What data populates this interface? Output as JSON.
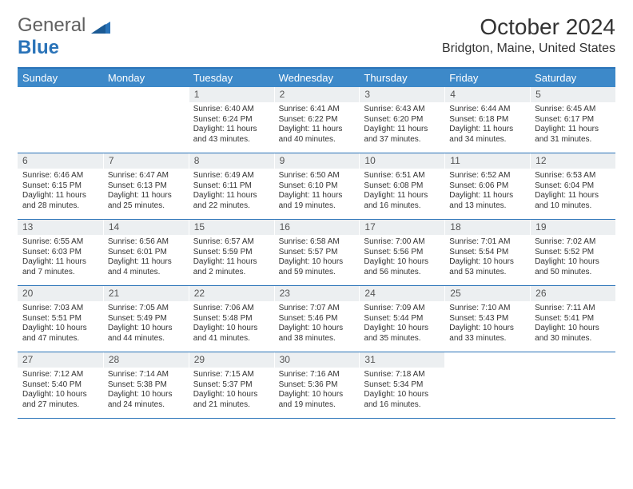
{
  "logo": {
    "word1": "General",
    "word2": "Blue"
  },
  "title": "October 2024",
  "location": "Bridgton, Maine, United States",
  "colors": {
    "header_bg": "#3d89c9",
    "header_text": "#ffffff",
    "border": "#2a73b8",
    "daynum_bg": "#eceff1",
    "daynum_text": "#555555",
    "body_text": "#333333",
    "logo_gray": "#606060",
    "logo_blue": "#2a73b8",
    "page_bg": "#ffffff"
  },
  "typography": {
    "title_fontsize": 28,
    "location_fontsize": 16,
    "header_fontsize": 13,
    "daynum_fontsize": 12,
    "cell_fontsize": 10,
    "logo_fontsize": 24
  },
  "days": [
    "Sunday",
    "Monday",
    "Tuesday",
    "Wednesday",
    "Thursday",
    "Friday",
    "Saturday"
  ],
  "weeks": [
    [
      {
        "n": "",
        "sunrise": "",
        "sunset": "",
        "daylight": ""
      },
      {
        "n": "",
        "sunrise": "",
        "sunset": "",
        "daylight": ""
      },
      {
        "n": "1",
        "sunrise": "Sunrise: 6:40 AM",
        "sunset": "Sunset: 6:24 PM",
        "daylight": "Daylight: 11 hours and 43 minutes."
      },
      {
        "n": "2",
        "sunrise": "Sunrise: 6:41 AM",
        "sunset": "Sunset: 6:22 PM",
        "daylight": "Daylight: 11 hours and 40 minutes."
      },
      {
        "n": "3",
        "sunrise": "Sunrise: 6:43 AM",
        "sunset": "Sunset: 6:20 PM",
        "daylight": "Daylight: 11 hours and 37 minutes."
      },
      {
        "n": "4",
        "sunrise": "Sunrise: 6:44 AM",
        "sunset": "Sunset: 6:18 PM",
        "daylight": "Daylight: 11 hours and 34 minutes."
      },
      {
        "n": "5",
        "sunrise": "Sunrise: 6:45 AM",
        "sunset": "Sunset: 6:17 PM",
        "daylight": "Daylight: 11 hours and 31 minutes."
      }
    ],
    [
      {
        "n": "6",
        "sunrise": "Sunrise: 6:46 AM",
        "sunset": "Sunset: 6:15 PM",
        "daylight": "Daylight: 11 hours and 28 minutes."
      },
      {
        "n": "7",
        "sunrise": "Sunrise: 6:47 AM",
        "sunset": "Sunset: 6:13 PM",
        "daylight": "Daylight: 11 hours and 25 minutes."
      },
      {
        "n": "8",
        "sunrise": "Sunrise: 6:49 AM",
        "sunset": "Sunset: 6:11 PM",
        "daylight": "Daylight: 11 hours and 22 minutes."
      },
      {
        "n": "9",
        "sunrise": "Sunrise: 6:50 AM",
        "sunset": "Sunset: 6:10 PM",
        "daylight": "Daylight: 11 hours and 19 minutes."
      },
      {
        "n": "10",
        "sunrise": "Sunrise: 6:51 AM",
        "sunset": "Sunset: 6:08 PM",
        "daylight": "Daylight: 11 hours and 16 minutes."
      },
      {
        "n": "11",
        "sunrise": "Sunrise: 6:52 AM",
        "sunset": "Sunset: 6:06 PM",
        "daylight": "Daylight: 11 hours and 13 minutes."
      },
      {
        "n": "12",
        "sunrise": "Sunrise: 6:53 AM",
        "sunset": "Sunset: 6:04 PM",
        "daylight": "Daylight: 11 hours and 10 minutes."
      }
    ],
    [
      {
        "n": "13",
        "sunrise": "Sunrise: 6:55 AM",
        "sunset": "Sunset: 6:03 PM",
        "daylight": "Daylight: 11 hours and 7 minutes."
      },
      {
        "n": "14",
        "sunrise": "Sunrise: 6:56 AM",
        "sunset": "Sunset: 6:01 PM",
        "daylight": "Daylight: 11 hours and 4 minutes."
      },
      {
        "n": "15",
        "sunrise": "Sunrise: 6:57 AM",
        "sunset": "Sunset: 5:59 PM",
        "daylight": "Daylight: 11 hours and 2 minutes."
      },
      {
        "n": "16",
        "sunrise": "Sunrise: 6:58 AM",
        "sunset": "Sunset: 5:57 PM",
        "daylight": "Daylight: 10 hours and 59 minutes."
      },
      {
        "n": "17",
        "sunrise": "Sunrise: 7:00 AM",
        "sunset": "Sunset: 5:56 PM",
        "daylight": "Daylight: 10 hours and 56 minutes."
      },
      {
        "n": "18",
        "sunrise": "Sunrise: 7:01 AM",
        "sunset": "Sunset: 5:54 PM",
        "daylight": "Daylight: 10 hours and 53 minutes."
      },
      {
        "n": "19",
        "sunrise": "Sunrise: 7:02 AM",
        "sunset": "Sunset: 5:52 PM",
        "daylight": "Daylight: 10 hours and 50 minutes."
      }
    ],
    [
      {
        "n": "20",
        "sunrise": "Sunrise: 7:03 AM",
        "sunset": "Sunset: 5:51 PM",
        "daylight": "Daylight: 10 hours and 47 minutes."
      },
      {
        "n": "21",
        "sunrise": "Sunrise: 7:05 AM",
        "sunset": "Sunset: 5:49 PM",
        "daylight": "Daylight: 10 hours and 44 minutes."
      },
      {
        "n": "22",
        "sunrise": "Sunrise: 7:06 AM",
        "sunset": "Sunset: 5:48 PM",
        "daylight": "Daylight: 10 hours and 41 minutes."
      },
      {
        "n": "23",
        "sunrise": "Sunrise: 7:07 AM",
        "sunset": "Sunset: 5:46 PM",
        "daylight": "Daylight: 10 hours and 38 minutes."
      },
      {
        "n": "24",
        "sunrise": "Sunrise: 7:09 AM",
        "sunset": "Sunset: 5:44 PM",
        "daylight": "Daylight: 10 hours and 35 minutes."
      },
      {
        "n": "25",
        "sunrise": "Sunrise: 7:10 AM",
        "sunset": "Sunset: 5:43 PM",
        "daylight": "Daylight: 10 hours and 33 minutes."
      },
      {
        "n": "26",
        "sunrise": "Sunrise: 7:11 AM",
        "sunset": "Sunset: 5:41 PM",
        "daylight": "Daylight: 10 hours and 30 minutes."
      }
    ],
    [
      {
        "n": "27",
        "sunrise": "Sunrise: 7:12 AM",
        "sunset": "Sunset: 5:40 PM",
        "daylight": "Daylight: 10 hours and 27 minutes."
      },
      {
        "n": "28",
        "sunrise": "Sunrise: 7:14 AM",
        "sunset": "Sunset: 5:38 PM",
        "daylight": "Daylight: 10 hours and 24 minutes."
      },
      {
        "n": "29",
        "sunrise": "Sunrise: 7:15 AM",
        "sunset": "Sunset: 5:37 PM",
        "daylight": "Daylight: 10 hours and 21 minutes."
      },
      {
        "n": "30",
        "sunrise": "Sunrise: 7:16 AM",
        "sunset": "Sunset: 5:36 PM",
        "daylight": "Daylight: 10 hours and 19 minutes."
      },
      {
        "n": "31",
        "sunrise": "Sunrise: 7:18 AM",
        "sunset": "Sunset: 5:34 PM",
        "daylight": "Daylight: 10 hours and 16 minutes."
      },
      {
        "n": "",
        "sunrise": "",
        "sunset": "",
        "daylight": ""
      },
      {
        "n": "",
        "sunrise": "",
        "sunset": "",
        "daylight": ""
      }
    ]
  ]
}
